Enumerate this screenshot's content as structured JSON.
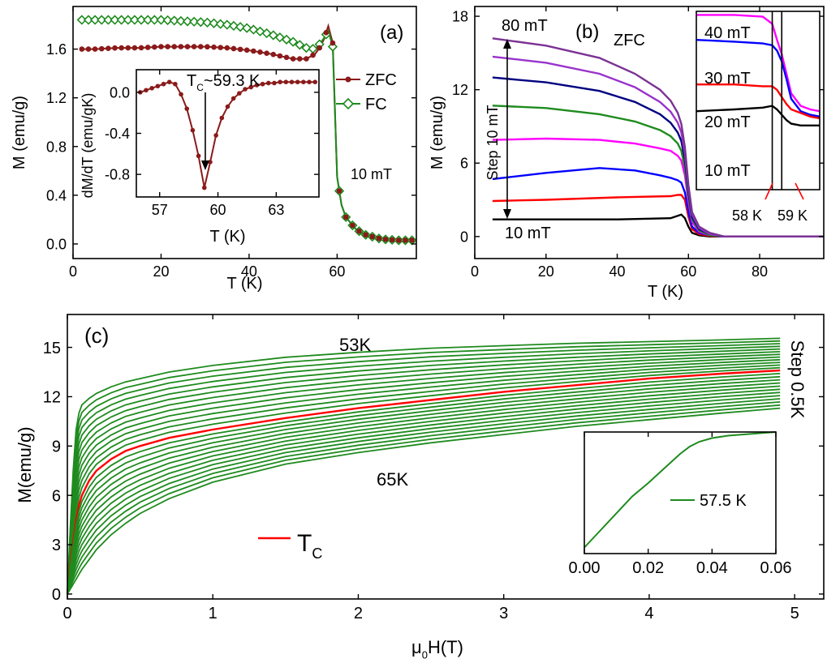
{
  "chart_data": [
    {
      "id": "a",
      "type": "line",
      "panel_label": "(a)",
      "xlabel": "T (K)",
      "ylabel": "M (emu/g)",
      "xlim": [
        0,
        78
      ],
      "ylim": [
        -0.12,
        1.95
      ],
      "xticks": [
        0,
        20,
        40,
        60
      ],
      "yticks": [
        0.0,
        0.4,
        0.8,
        1.2,
        1.6
      ],
      "ytick_labels": [
        "0.0",
        "0.4",
        "0.8",
        "1.2",
        "1.6"
      ],
      "field_label": "10 mT",
      "legend": [
        "ZFC",
        "FC"
      ],
      "series": [
        {
          "name": "ZFC",
          "color": "#8b1a1a",
          "marker": "circle",
          "x": [
            2,
            5,
            10,
            15,
            20,
            25,
            30,
            35,
            40,
            45,
            50,
            53,
            55,
            56,
            57,
            58,
            59,
            60,
            61,
            62,
            64,
            66,
            70,
            74,
            78
          ],
          "y": [
            1.6,
            1.6,
            1.61,
            1.61,
            1.62,
            1.62,
            1.62,
            1.61,
            1.59,
            1.56,
            1.52,
            1.52,
            1.56,
            1.61,
            1.68,
            1.79,
            1.65,
            0.55,
            0.32,
            0.22,
            0.13,
            0.08,
            0.04,
            0.03,
            0.03
          ]
        },
        {
          "name": "FC",
          "color": "#1e8b1e",
          "marker": "diamond",
          "x": [
            2,
            5,
            10,
            15,
            20,
            25,
            30,
            35,
            40,
            45,
            50,
            53,
            55,
            56,
            57,
            58,
            59,
            60,
            61,
            62,
            64,
            66,
            70,
            74,
            78
          ],
          "y": [
            1.84,
            1.84,
            1.84,
            1.84,
            1.84,
            1.83,
            1.82,
            1.8,
            1.77,
            1.72,
            1.66,
            1.61,
            1.6,
            1.64,
            1.69,
            1.75,
            1.62,
            0.55,
            0.32,
            0.22,
            0.13,
            0.08,
            0.04,
            0.03,
            0.03
          ]
        }
      ],
      "inset": {
        "xlabel": "T (K)",
        "ylabel": "dM/dT (emu/gK)",
        "xlim": [
          55.8,
          65.2
        ],
        "ylim": [
          -1.02,
          0.22
        ],
        "xticks": [
          57,
          60,
          63
        ],
        "yticks": [
          0.0,
          -0.4,
          -0.8
        ],
        "ytick_labels": [
          "0.0",
          "-0.4",
          "-0.8"
        ],
        "annotation": "T",
        "annotation_sub": "C",
        "annotation_rest": "~59.3 K",
        "x": [
          56.0,
          56.3,
          56.6,
          56.9,
          57.2,
          57.5,
          57.8,
          58.1,
          58.4,
          58.7,
          59.0,
          59.3,
          59.6,
          59.9,
          60.2,
          60.5,
          60.8,
          61.1,
          61.4,
          61.7,
          62.0,
          62.3,
          62.6,
          62.9,
          63.2,
          63.5,
          63.8,
          64.1,
          64.4,
          64.7,
          65.0
        ],
        "y": [
          0.0,
          0.02,
          0.04,
          0.06,
          0.08,
          0.1,
          0.08,
          -0.02,
          -0.16,
          -0.37,
          -0.62,
          -0.93,
          -0.68,
          -0.42,
          -0.25,
          -0.14,
          -0.06,
          -0.01,
          0.03,
          0.05,
          0.07,
          0.08,
          0.09,
          0.09,
          0.1,
          0.1,
          0.1,
          0.1,
          0.1,
          0.1,
          0.1
        ]
      }
    },
    {
      "id": "b",
      "type": "line",
      "panel_label": "(b)",
      "subtitle": "ZFC",
      "xlabel": "T (K)",
      "ylabel": "M (emu/g)",
      "xlim": [
        0,
        98
      ],
      "ylim": [
        -1.8,
        18.8
      ],
      "xticks": [
        0,
        20,
        40,
        60,
        80
      ],
      "yticks": [
        0,
        6,
        12,
        18
      ],
      "top_label": "80 mT",
      "bottom_label": "10 mT",
      "step_label": "Step 10 mT",
      "series": [
        {
          "name": "10 mT",
          "color": "#000000",
          "x": [
            5,
            20,
            40,
            55,
            57,
            58,
            59,
            60,
            61,
            63,
            66,
            70,
            80,
            98
          ],
          "y": [
            1.4,
            1.4,
            1.4,
            1.5,
            1.7,
            1.8,
            1.5,
            0.8,
            0.3,
            0.1,
            0.0,
            0.0,
            0.0,
            0.0
          ]
        },
        {
          "name": "20 mT",
          "color": "#ff0000",
          "x": [
            5,
            20,
            40,
            55,
            57,
            58,
            59,
            60,
            61,
            63,
            66,
            70,
            80,
            98
          ],
          "y": [
            2.9,
            3.0,
            3.2,
            3.3,
            3.4,
            3.4,
            3.0,
            1.6,
            0.6,
            0.2,
            0.05,
            0.0,
            0.0,
            0.0
          ]
        },
        {
          "name": "30 mT",
          "color": "#0000ff",
          "x": [
            5,
            20,
            35,
            45,
            52,
            55,
            57,
            58,
            59,
            60,
            61,
            63,
            66,
            70,
            80,
            98
          ],
          "y": [
            4.7,
            5.2,
            5.6,
            5.4,
            5.0,
            4.8,
            4.6,
            4.4,
            3.6,
            2.0,
            0.8,
            0.3,
            0.1,
            0.0,
            0.0,
            0.0
          ]
        },
        {
          "name": "40 mT",
          "color": "#ff00ff",
          "x": [
            5,
            20,
            35,
            45,
            52,
            55,
            57,
            58,
            59,
            60,
            61,
            63,
            66,
            70,
            80,
            98
          ],
          "y": [
            7.9,
            8.0,
            7.9,
            7.6,
            7.2,
            7.0,
            6.6,
            6.2,
            5.0,
            2.8,
            1.2,
            0.4,
            0.1,
            0.0,
            0.0,
            0.0
          ]
        },
        {
          "name": "50 mT",
          "color": "#1e8b1e",
          "x": [
            5,
            20,
            35,
            45,
            52,
            55,
            57,
            58,
            59,
            60,
            61,
            63,
            66,
            70,
            80,
            98
          ],
          "y": [
            10.7,
            10.5,
            10.0,
            9.4,
            8.7,
            8.2,
            7.6,
            7.0,
            5.6,
            3.2,
            1.4,
            0.5,
            0.1,
            0.0,
            0.0,
            0.0
          ]
        },
        {
          "name": "60 mT",
          "color": "#000080",
          "x": [
            5,
            20,
            35,
            45,
            52,
            55,
            57,
            58,
            59,
            60,
            61,
            63,
            66,
            70,
            80,
            98
          ],
          "y": [
            13.0,
            12.6,
            11.9,
            11.0,
            10.0,
            9.3,
            8.5,
            7.8,
            6.3,
            3.6,
            1.6,
            0.6,
            0.2,
            0.0,
            0.0,
            0.0
          ]
        },
        {
          "name": "70 mT",
          "color": "#9932cc",
          "x": [
            5,
            20,
            35,
            45,
            52,
            55,
            57,
            58,
            59,
            60,
            61,
            63,
            66,
            70,
            80,
            98
          ],
          "y": [
            14.7,
            14.2,
            13.3,
            12.2,
            11.0,
            10.2,
            9.3,
            8.5,
            6.8,
            3.9,
            1.8,
            0.7,
            0.2,
            0.0,
            0.0,
            0.0
          ]
        },
        {
          "name": "80 mT",
          "color": "#7b3294",
          "x": [
            5,
            20,
            35,
            45,
            52,
            55,
            57,
            58,
            59,
            60,
            61,
            63,
            66,
            70,
            80,
            98
          ],
          "y": [
            16.2,
            15.6,
            14.6,
            13.3,
            12.0,
            11.1,
            10.1,
            9.2,
            7.3,
            4.2,
            2.0,
            0.8,
            0.3,
            0.0,
            0.0,
            0.0
          ]
        }
      ],
      "inset": {
        "labels": [
          "40 mT",
          "30 mT",
          "20 mT",
          "10 mT"
        ],
        "vlines": [
          58,
          59
        ],
        "vline_labels": [
          "58 K",
          "59 K"
        ],
        "xlim": [
          50,
          63
        ],
        "ylim": [
          0,
          10
        ],
        "series": [
          {
            "name": "40 mT",
            "color": "#ff00ff",
            "x": [
              50,
              54,
              57,
              58,
              58.5,
              59,
              59.5,
              60,
              61,
              62,
              63
            ],
            "y": [
              9.8,
              9.8,
              9.7,
              9.3,
              8.4,
              7.6,
              6.5,
              5.4,
              4.7,
              4.5,
              4.4
            ]
          },
          {
            "name": "30 mT",
            "color": "#0000ff",
            "x": [
              50,
              54,
              57,
              58,
              58.5,
              59,
              59.5,
              60,
              61,
              62,
              63
            ],
            "y": [
              8.4,
              8.3,
              8.2,
              8.1,
              7.8,
              7.2,
              6.2,
              5.1,
              4.4,
              4.2,
              4.1
            ]
          },
          {
            "name": "20 mT",
            "color": "#ff0000",
            "x": [
              50,
              54,
              57,
              58,
              58.5,
              59,
              59.5,
              60,
              61,
              62,
              63
            ],
            "y": [
              5.9,
              5.9,
              5.8,
              5.8,
              5.6,
              5.2,
              4.8,
              4.5,
              4.3,
              4.1,
              4.0
            ]
          },
          {
            "name": "10 mT",
            "color": "#000000",
            "x": [
              50,
              54,
              57,
              58,
              58.5,
              59,
              59.5,
              60,
              61,
              62,
              63
            ],
            "y": [
              4.4,
              4.5,
              4.6,
              4.7,
              4.5,
              4.2,
              3.9,
              3.7,
              3.6,
              3.6,
              3.6
            ]
          }
        ]
      }
    },
    {
      "id": "c",
      "type": "line",
      "panel_label": "(c)",
      "xlabel_main": "μ",
      "xlabel_sub": "0",
      "xlabel_rest": "H(T)",
      "ylabel": "M(emu/g)",
      "xlim": [
        0,
        5.2
      ],
      "ylim": [
        -0.3,
        17.0
      ],
      "xticks": [
        0,
        1,
        2,
        3,
        4,
        5
      ],
      "yticks": [
        0,
        3,
        6,
        9,
        12,
        15
      ],
      "top_label": "53K",
      "bottom_label": "65K",
      "step_label": "Step 0.5K",
      "legend_label": "T",
      "legend_sub": "C",
      "temperatures": [
        53.0,
        53.5,
        54.0,
        54.5,
        55.0,
        55.5,
        56.0,
        56.5,
        57.0,
        57.5,
        58.0,
        58.5,
        59.0,
        59.5,
        60.0,
        60.5,
        61.0,
        61.5,
        62.0,
        62.5,
        63.0,
        63.5,
        64.0,
        64.5,
        65.0
      ],
      "tc_index": 12,
      "x": [
        0,
        0.02,
        0.04,
        0.06,
        0.08,
        0.1,
        0.15,
        0.2,
        0.3,
        0.4,
        0.5,
        0.7,
        1.0,
        1.5,
        2.0,
        2.5,
        3.0,
        3.5,
        4.0,
        4.5,
        4.9
      ],
      "curve_53K": [
        0,
        4.0,
        7.5,
        10.0,
        11.0,
        11.5,
        11.9,
        12.2,
        12.6,
        12.9,
        13.1,
        13.5,
        13.9,
        14.4,
        14.7,
        14.95,
        15.1,
        15.25,
        15.35,
        15.45,
        15.55
      ],
      "curve_Tc": [
        0,
        1.8,
        3.2,
        4.5,
        5.4,
        6.0,
        6.9,
        7.5,
        8.2,
        8.7,
        9.0,
        9.5,
        10.0,
        10.7,
        11.3,
        11.8,
        12.3,
        12.7,
        13.1,
        13.4,
        13.6
      ],
      "curve_65K": [
        0,
        0.3,
        0.6,
        0.9,
        1.2,
        1.5,
        2.1,
        2.7,
        3.6,
        4.3,
        4.9,
        5.8,
        6.8,
        7.9,
        8.6,
        9.2,
        9.7,
        10.2,
        10.6,
        11.0,
        11.3
      ],
      "inset": {
        "label": "57.5 K",
        "xlim": [
          0,
          0.06
        ],
        "ylim": [
          0,
          1
        ],
        "xticks": [
          0.0,
          0.02,
          0.04,
          0.06
        ],
        "xtick_labels": [
          "0.00",
          "0.02",
          "0.04",
          "0.06"
        ],
        "x": [
          0,
          0.005,
          0.01,
          0.015,
          0.02,
          0.025,
          0.03,
          0.033,
          0.036,
          0.04,
          0.045,
          0.05,
          0.055,
          0.06
        ],
        "y": [
          0.05,
          0.19,
          0.33,
          0.47,
          0.58,
          0.7,
          0.82,
          0.88,
          0.92,
          0.95,
          0.97,
          0.98,
          0.99,
          1.0
        ]
      }
    }
  ]
}
